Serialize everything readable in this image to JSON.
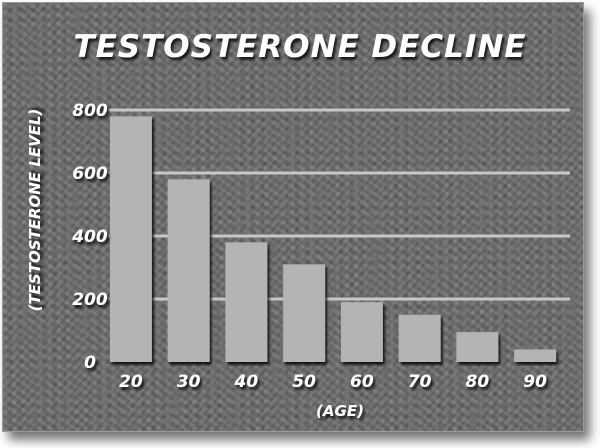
{
  "chart_data": {
    "type": "bar",
    "title": "TESTOSTERONE DECLINE",
    "xlabel": "(AGE)",
    "ylabel": "(TESTOSTERONE LEVEL)",
    "categories": [
      "20",
      "30",
      "40",
      "50",
      "60",
      "70",
      "80",
      "90"
    ],
    "values": [
      780,
      580,
      380,
      310,
      190,
      150,
      95,
      40
    ],
    "ylim": [
      0,
      800
    ],
    "yticks": [
      "0",
      "200",
      "400",
      "600",
      "800"
    ],
    "grid": true,
    "colors": {
      "bar": "#b4b4b4",
      "background": "#6a6a6a",
      "text": "#ffffff",
      "gridline": "#c8c8c8"
    }
  }
}
